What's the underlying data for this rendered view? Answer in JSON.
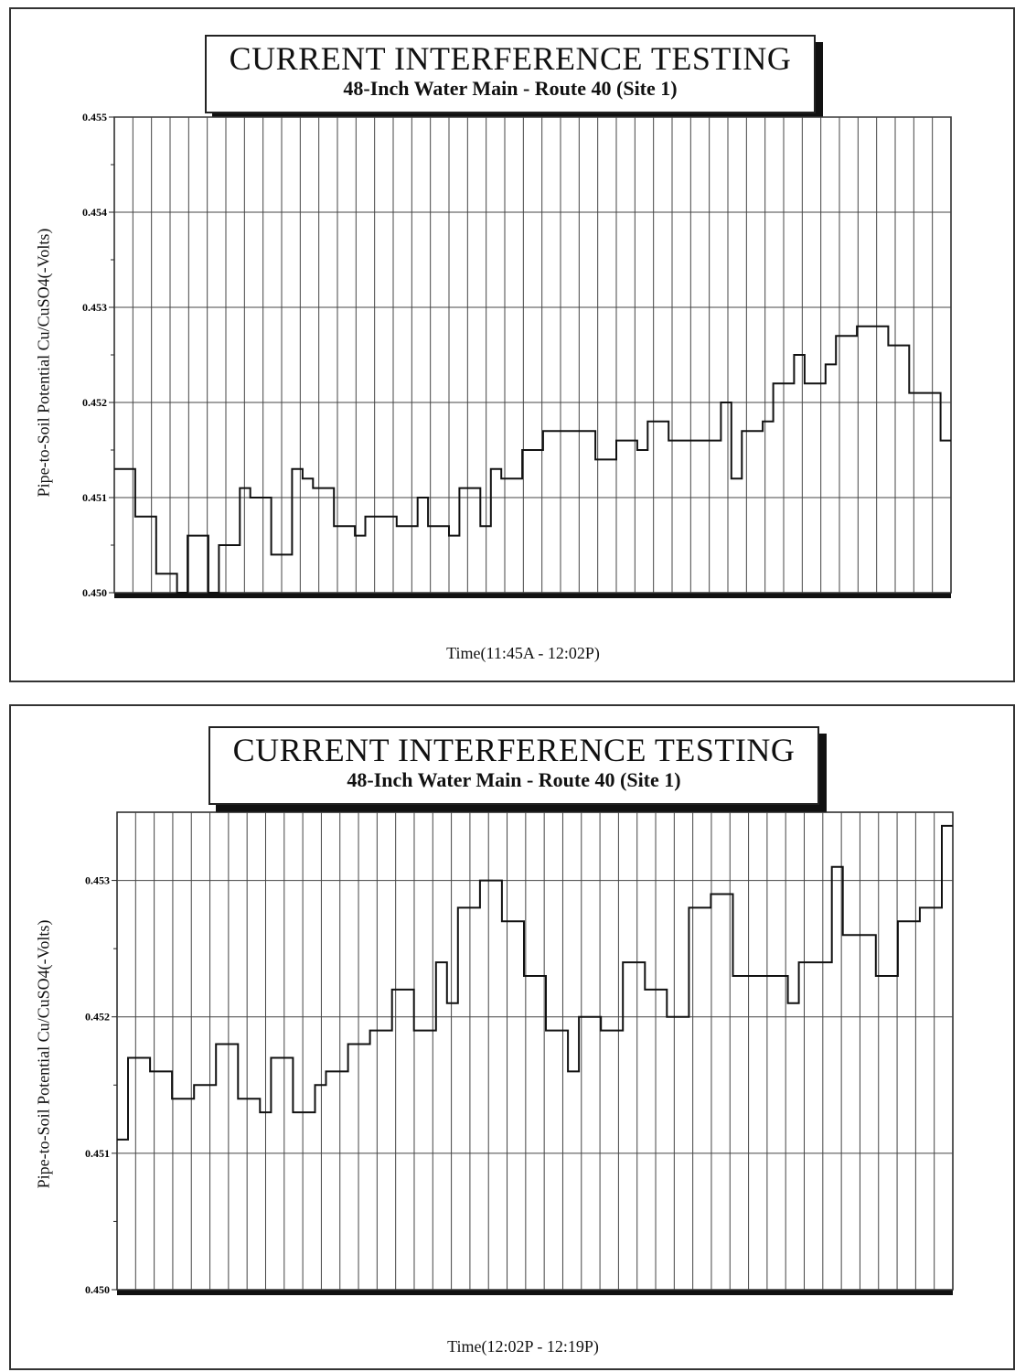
{
  "charts_text": {
    "title": "CURRENT INTERFERENCE TESTING",
    "subtitle": "48-Inch Water Main - Route 40 (Site 1)",
    "ylabel": "Pipe-to-Soil Potential Cu/CuSO4(-Volts)"
  },
  "chart_data": [
    {
      "type": "line",
      "title": "CURRENT INTERFERENCE TESTING",
      "subtitle": "48-Inch Water Main - Route 40 (Site 1)",
      "xlabel": "Time(11:45A - 12:02P)",
      "ylabel": "Pipe-to-Soil Potential Cu/CuSO4(-Volts)",
      "ylim": [
        0.45,
        0.455
      ],
      "yticks": [
        "0.450",
        "0.451",
        "0.452",
        "0.453",
        "0.454",
        "0.455"
      ],
      "ytick_values": [
        0.45,
        0.451,
        0.452,
        0.453,
        0.454,
        0.455
      ],
      "grid": true,
      "series": [
        {
          "values": [
            0.4513,
            0.4513,
            0.4508,
            0.4508,
            0.4502,
            0.4502,
            0.45,
            0.4506,
            0.4506,
            0.45,
            0.4505,
            0.4505,
            0.4511,
            0.451,
            0.451,
            0.4504,
            0.4504,
            0.4513,
            0.4512,
            0.4511,
            0.4511,
            0.4507,
            0.4507,
            0.4506,
            0.4508,
            0.4508,
            0.4508,
            0.4507,
            0.4507,
            0.451,
            0.4507,
            0.4507,
            0.4506,
            0.4511,
            0.4511,
            0.4507,
            0.4513,
            0.4512,
            0.4512,
            0.4515,
            0.4515,
            0.4517,
            0.4517,
            0.4517,
            0.4517,
            0.4517,
            0.4514,
            0.4514,
            0.4516,
            0.4516,
            0.4515,
            0.4518,
            0.4518,
            0.4516,
            0.4516,
            0.4516,
            0.4516,
            0.4516,
            0.452,
            0.4512,
            0.4517,
            0.4517,
            0.4518,
            0.4522,
            0.4522,
            0.4525,
            0.4522,
            0.4522,
            0.4524,
            0.4527,
            0.4527,
            0.4528,
            0.4528,
            0.4528,
            0.4526,
            0.4526,
            0.4521,
            0.4521,
            0.4521,
            0.4516
          ]
        }
      ]
    },
    {
      "type": "line",
      "title": "CURRENT INTERFERENCE TESTING",
      "subtitle": "48-Inch Water Main - Route 40 (Site 1)",
      "xlabel": "Time(12:02P - 12:19P)",
      "ylabel": "Pipe-to-Soil Potential Cu/CuSO4(-Volts)",
      "ylim": [
        0.45,
        0.4535
      ],
      "yticks": [
        "0.450",
        "0.451",
        "0.452",
        "0.453"
      ],
      "ytick_values": [
        0.45,
        0.451,
        0.452,
        0.453
      ],
      "grid": true,
      "series": [
        {
          "values": [
            0.4511,
            0.4517,
            0.4517,
            0.4516,
            0.4516,
            0.4514,
            0.4514,
            0.4515,
            0.4515,
            0.4518,
            0.4518,
            0.4514,
            0.4514,
            0.4513,
            0.4517,
            0.4517,
            0.4513,
            0.4513,
            0.4515,
            0.4516,
            0.4516,
            0.4518,
            0.4518,
            0.4519,
            0.4519,
            0.4522,
            0.4522,
            0.4519,
            0.4519,
            0.4524,
            0.4521,
            0.4528,
            0.4528,
            0.453,
            0.453,
            0.4527,
            0.4527,
            0.4523,
            0.4523,
            0.4519,
            0.4519,
            0.4516,
            0.452,
            0.452,
            0.4519,
            0.4519,
            0.4524,
            0.4524,
            0.4522,
            0.4522,
            0.452,
            0.452,
            0.4528,
            0.4528,
            0.4529,
            0.4529,
            0.4523,
            0.4523,
            0.4523,
            0.4523,
            0.4523,
            0.4521,
            0.4524,
            0.4524,
            0.4524,
            0.4531,
            0.4526,
            0.4526,
            0.4526,
            0.4523,
            0.4523,
            0.4527,
            0.4527,
            0.4528,
            0.4528,
            0.4534
          ]
        }
      ]
    }
  ]
}
